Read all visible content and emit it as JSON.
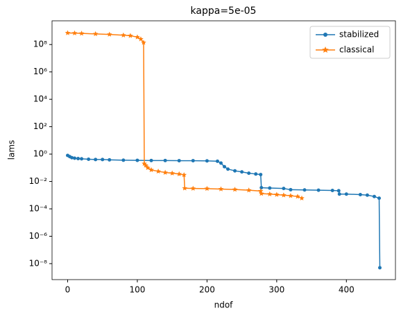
{
  "chart_data": {
    "type": "line",
    "title": "kappa=5e-05",
    "x_label": "ndof",
    "y_label": "lams",
    "log_y": true,
    "legend": "upper right",
    "xlim": [
      -22.4,
      470.4
    ],
    "xticks": [
      0,
      100,
      200,
      300,
      400
    ],
    "ylim": [
      6.8e-10,
      5400000000.0
    ],
    "yticks": [
      {
        "value": 1e-08,
        "label": "10⁻⁸"
      },
      {
        "value": 1e-06,
        "label": "10⁻⁶"
      },
      {
        "value": 0.0001,
        "label": "10⁻⁴"
      },
      {
        "value": 0.01,
        "label": "10⁻²"
      },
      {
        "value": 1,
        "label": "10⁰"
      },
      {
        "value": 100,
        "label": "10²"
      },
      {
        "value": 10000,
        "label": "10⁴"
      },
      {
        "value": 1000000,
        "label": "10⁶"
      },
      {
        "value": 100000000,
        "label": "10⁸"
      }
    ],
    "series": [
      {
        "name": "stabilized",
        "color": "#1f77b4",
        "marker": "dot",
        "x": [
          0,
          3,
          6,
          10,
          15,
          20,
          30,
          40,
          50,
          60,
          80,
          100,
          120,
          140,
          160,
          180,
          200,
          215,
          220,
          225,
          230,
          240,
          250,
          260,
          270,
          277,
          278,
          290,
          310,
          320,
          340,
          360,
          380,
          389,
          390,
          400,
          420,
          430,
          440,
          447,
          448
        ],
        "values": [
          0.8,
          0.65,
          0.55,
          0.5,
          0.47,
          0.45,
          0.42,
          0.4,
          0.4,
          0.38,
          0.36,
          0.35,
          0.34,
          0.34,
          0.33,
          0.33,
          0.32,
          0.3,
          0.22,
          0.12,
          0.08,
          0.06,
          0.05,
          0.04,
          0.035,
          0.032,
          0.0035,
          0.0033,
          0.0031,
          0.0025,
          0.0024,
          0.0023,
          0.0022,
          0.0021,
          0.0012,
          0.0012,
          0.0011,
          0.001,
          0.0008,
          0.0006,
          5e-09
        ]
      },
      {
        "name": "classical",
        "color": "#ff7f0e",
        "marker": "star",
        "x": [
          0,
          10,
          20,
          40,
          60,
          80,
          90,
          100,
          105,
          109,
          110,
          112,
          115,
          120,
          130,
          140,
          150,
          160,
          167,
          168,
          180,
          200,
          220,
          240,
          260,
          277,
          278,
          290,
          300,
          310,
          320,
          330,
          336
        ],
        "values": [
          700000000.0,
          680000000.0,
          650000000.0,
          600000000.0,
          550000000.0,
          480000000.0,
          440000000.0,
          350000000.0,
          250000000.0,
          140000000.0,
          0.2,
          0.15,
          0.1,
          0.07,
          0.055,
          0.045,
          0.04,
          0.035,
          0.03,
          0.0032,
          0.0031,
          0.003,
          0.0028,
          0.0026,
          0.0023,
          0.002,
          0.0013,
          0.0012,
          0.0011,
          0.001,
          0.0009,
          0.0008,
          0.0006
        ]
      }
    ]
  }
}
